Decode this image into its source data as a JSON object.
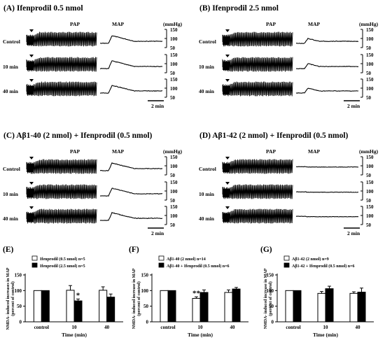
{
  "panels": [
    {
      "id": "A",
      "title": "(A) Ifenprodil 0.5 nmol",
      "pap_label": "PAP",
      "map_label": "MAP",
      "unit": "(mmHg)",
      "rows": [
        "Control",
        "10 min",
        "40 min"
      ],
      "scale_ticks": [
        "150",
        "100",
        "50"
      ],
      "time_scale": "2 min",
      "map_style": "A"
    },
    {
      "id": "B",
      "title": "(B) Ifenprodil 2.5 nmol",
      "pap_label": "PAP",
      "map_label": "MAP",
      "unit": "(mmHg)",
      "rows": [
        "Control",
        "10 min",
        "40 min"
      ],
      "scale_ticks": [
        "150",
        "100",
        "50"
      ],
      "time_scale": "2 min",
      "map_style": "B"
    },
    {
      "id": "C",
      "title": "(C) Aβ1-40 (2 nmol) + Ifenprodil (0.5 nmol)",
      "pap_label": "PAP",
      "map_label": "MAP",
      "unit": "(mmHg)",
      "rows": [
        "Control",
        "10 min",
        "40 min"
      ],
      "scale_ticks": [
        "150",
        "100",
        "50"
      ],
      "time_scale": "2 min",
      "map_style": "A"
    },
    {
      "id": "D",
      "title": "(D) Aβ1-42 (2 nmol) + Ifenprodil (0.5 nmol)",
      "pap_label": "PAP",
      "map_label": "MAP",
      "unit": "(mmHg)",
      "rows": [
        "Control",
        "10 min",
        "40 min"
      ],
      "scale_ticks": [
        "150",
        "100",
        "50"
      ],
      "time_scale": "2 min",
      "map_style": "D"
    }
  ],
  "chart_data": [
    {
      "panel": "(E)",
      "type": "bar",
      "ylabel": "NMDA- induced increases in MAP\n(percent of control)",
      "xlabel": "Time (min)",
      "categories": [
        "control",
        "10",
        "40"
      ],
      "ylim": [
        0,
        150
      ],
      "yticks": [
        0,
        50,
        100,
        150
      ],
      "series": [
        {
          "name": "Ifenprodil (0.5 nmol) n=5",
          "fill": "#ffffff",
          "values": [
            100,
            101,
            101
          ],
          "errors": [
            0,
            15,
            11
          ]
        },
        {
          "name": "Ifenprodil (2.5 nmol) n=5",
          "fill": "#000000",
          "values": [
            100,
            67,
            79
          ],
          "errors": [
            0,
            6,
            10
          ]
        }
      ],
      "annotations": [
        {
          "category": "10",
          "series": 1,
          "text": "*"
        }
      ]
    },
    {
      "panel": "(F)",
      "type": "bar",
      "ylabel": "NMDA- induced increase in MAP\n(percent of control)",
      "xlabel": "Time (min)",
      "categories": [
        "control",
        "10",
        "40"
      ],
      "ylim": [
        0,
        150
      ],
      "yticks": [
        0,
        50,
        100,
        150
      ],
      "series": [
        {
          "name": "Aβ1-40 (2 nmol) n=14",
          "fill": "#ffffff",
          "values": [
            100,
            75,
            94
          ],
          "errors": [
            0,
            5,
            8
          ]
        },
        {
          "name": "Aβ1-40 + Ifenprodil (0.5 nmol) n=6",
          "fill": "#000000",
          "values": [
            100,
            94,
            105
          ],
          "errors": [
            0,
            8,
            5
          ]
        }
      ],
      "annotations": [
        {
          "category": "10",
          "series": 0,
          "text": "**"
        }
      ]
    },
    {
      "panel": "(G)",
      "type": "bar",
      "ylabel": "NMDA- induced increase in MAP\n(percent of control)",
      "xlabel": "Time (min)",
      "categories": [
        "control",
        "10",
        "40"
      ],
      "ylim": [
        0,
        150
      ],
      "yticks": [
        0,
        50,
        100,
        150
      ],
      "series": [
        {
          "name": "Aβ1-42 (2 nmol) n=9",
          "fill": "#ffffff",
          "values": [
            100,
            91,
            91
          ],
          "errors": [
            0,
            6,
            5
          ]
        },
        {
          "name": "Aβ1-42 + Ifenprodil (0.5 nmol) n=6",
          "fill": "#000000",
          "values": [
            100,
            106,
            95
          ],
          "errors": [
            0,
            8,
            13
          ]
        }
      ],
      "annotations": []
    }
  ]
}
